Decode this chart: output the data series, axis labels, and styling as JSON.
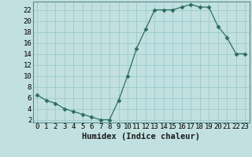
{
  "x": [
    0,
    1,
    2,
    3,
    4,
    5,
    6,
    7,
    8,
    9,
    10,
    11,
    12,
    13,
    14,
    15,
    16,
    17,
    18,
    19,
    20,
    21,
    22,
    23
  ],
  "y": [
    6.5,
    5.5,
    5.0,
    4.0,
    3.5,
    3.0,
    2.5,
    2.0,
    2.0,
    5.5,
    10.0,
    15.0,
    18.5,
    22.0,
    22.0,
    22.0,
    22.5,
    23.0,
    22.5,
    22.5,
    19.0,
    17.0,
    14.0,
    14.0
  ],
  "xlabel": "Humidex (Indice chaleur)",
  "line_color": "#2d6e5e",
  "marker": "D",
  "marker_size": 2.5,
  "bg_color": "#c2e0e0",
  "grid_color": "#9ecece",
  "ylim": [
    1.5,
    23.5
  ],
  "xlim": [
    -0.5,
    23.5
  ],
  "yticks": [
    2,
    4,
    6,
    8,
    10,
    12,
    14,
    16,
    18,
    20,
    22
  ],
  "xticks": [
    0,
    1,
    2,
    3,
    4,
    5,
    6,
    7,
    8,
    9,
    10,
    11,
    12,
    13,
    14,
    15,
    16,
    17,
    18,
    19,
    20,
    21,
    22,
    23
  ],
  "tick_label_size": 6.5,
  "xlabel_size": 7.5
}
